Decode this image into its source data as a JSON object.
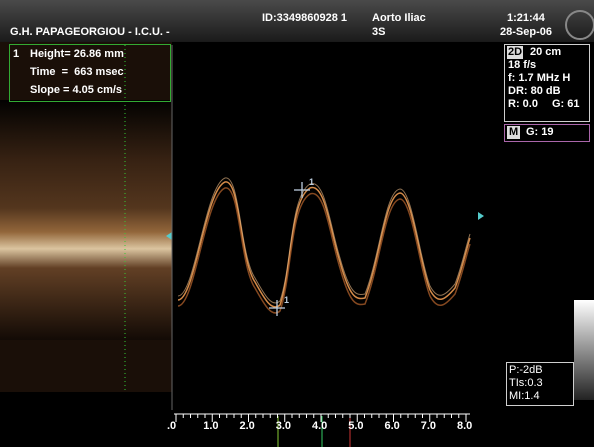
{
  "header": {
    "operator": "G.H. PAPAGEORGIOU - I.C.U. -",
    "patient_id": "ID:3349860928 1",
    "preset": "Aorto Iliac",
    "probe": "3S",
    "time": "1:21:44",
    "date": "28-Sep-06"
  },
  "measurement": {
    "index": "1",
    "lines": [
      "Height= 26.86 mm",
      "Time  =  663 msec",
      "Slope = 4.05 cm/s"
    ]
  },
  "settings": {
    "mode": "2D",
    "depth": "20 cm",
    "lines": [
      "18 f/s",
      "f: 1.7 MHz H",
      "DR: 80 dB"
    ],
    "reject": "R: 0.0",
    "gain": "G: 61"
  },
  "mmode": {
    "mode": "M",
    "gain": "G: 19"
  },
  "output": {
    "lines": [
      "P:-2dB",
      "TIs:0.3",
      "MI:1.4"
    ]
  },
  "caliper_labels": [
    "1",
    "1"
  ],
  "time_axis": [
    ".0",
    "1.0",
    "2.0",
    "3.0",
    "4.0",
    "5.0",
    "6.0",
    "7.0",
    "8.0"
  ]
}
